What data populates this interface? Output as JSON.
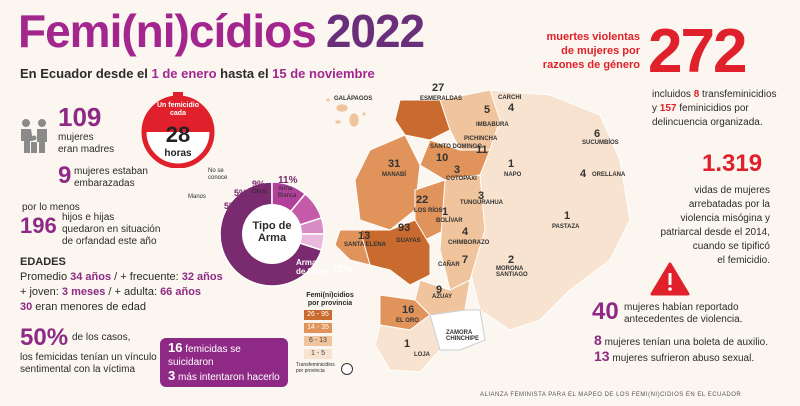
{
  "header": {
    "title_main": "Femi(ni)cídios",
    "title_year": "2022",
    "subtitle_prefix": "En Ecuador desde el ",
    "subtitle_start": "1 de enero",
    "subtitle_mid": " hasta el ",
    "subtitle_end": "15 de noviembre"
  },
  "mothers": {
    "count": "109",
    "label_line1": "mujeres",
    "label_line2": "eran madres"
  },
  "pregnant": {
    "count": "9",
    "label_line1": "mujeres estaban",
    "label_line2": "embarazadas"
  },
  "timer": {
    "line1": "Un femicidio",
    "line2": "cada",
    "value": "28",
    "unit": "horas"
  },
  "orphans": {
    "prefix": "por lo menos",
    "count": "196",
    "text_line1": "hijos e hijas",
    "text_line2": "quedaron en situación",
    "text_line3": "de orfandad este año"
  },
  "weapons": {
    "center_line1": "Tipo de",
    "center_line2": "Arma",
    "slices": [
      {
        "label": "Arma de fuego",
        "value": 70,
        "color": "#7a2a6e"
      },
      {
        "label": "Arma Blanca",
        "value": 11,
        "color": "#b0409a"
      },
      {
        "label": "Otros",
        "value": 9,
        "color": "#c45aa8"
      },
      {
        "label": "No se conoce",
        "value": 5,
        "color": "#d98cc4"
      },
      {
        "label": "Manos",
        "value": 5,
        "color": "#eab8dc"
      }
    ],
    "pct_fuego": "70%",
    "pct_blanca": "11%",
    "pct_otros": "9%",
    "pct_noconoce": "5%",
    "pct_manos": "5%",
    "lbl_fuego_1": "Arma",
    "lbl_fuego_2": "de fuego",
    "lbl_blanca_1": "Arma",
    "lbl_blanca_2": "Blanca",
    "lbl_otros": "Otros",
    "lbl_noconoce_1": "No se",
    "lbl_noconoce_2": "conoce",
    "lbl_manos": "Manos"
  },
  "ages": {
    "heading": "EDADES",
    "line1_a": "Promedio ",
    "line1_b": "34 años",
    "line1_c": " / + frecuente: ",
    "line1_d": "32 años",
    "line2_a": "+ joven: ",
    "line2_b": "3 meses",
    "line2_c": " / + adulta: ",
    "line2_d": "66 años",
    "line3_a": "30",
    "line3_b": " eran menores de edad"
  },
  "relationship": {
    "pct": "50%",
    "line1": "de los casos,",
    "line2": "los femicidas tenían un vínculo",
    "line3": "sentimental con la víctima"
  },
  "suicide": {
    "n1": "16",
    "t1": "femicidas se suicidaron",
    "n2": "3",
    "t2": "más intentaron hacerlo"
  },
  "legend": {
    "title_1": "Femi(ni)cidios",
    "title_2": "por provincia",
    "ranges": [
      "26 - 95",
      "14 - 35",
      "6 - 13",
      "1 - 5"
    ],
    "trans_label_1": "Transfeminicidios",
    "trans_label_2": "por provincia"
  },
  "violent_deaths": {
    "line1": "muertes violentas",
    "line2": "de mujeres por",
    "line3": "razones de género",
    "total": "272",
    "incl_a": "incluidos ",
    "incl_b": "8",
    "incl_c": " transfeminicidios",
    "incl_d": "y ",
    "incl_e": "157",
    "incl_f": " feminicidios por",
    "incl_g": "delincuencia organizada."
  },
  "since2014": {
    "count": "1.319",
    "line1": "vidas de mujeres",
    "line2": "arrebatadas por la",
    "line3": "violencia misógina y",
    "line4": "patriarcal desde el 2014,",
    "line5": "cuando se tipificó",
    "line6": "el femicidio."
  },
  "warnings": {
    "n1": "40",
    "t1a": "mujeres habían reportado",
    "t1b": "antecedentes de violencia.",
    "n2": "8",
    "t2": "mujeres tenían una boleta de auxilio.",
    "n3": "13",
    "t3": "mujeres sufrieron abuso sexual."
  },
  "provinces": [
    {
      "name": "GALÁPAGOS",
      "count": ""
    },
    {
      "name": "ESMERALDAS",
      "count": "27"
    },
    {
      "name": "CARCHI",
      "count": "4"
    },
    {
      "name": "IMBABURA",
      "count": "5"
    },
    {
      "name": "SUCUMBÍOS",
      "count": "6"
    },
    {
      "name": "PICHINCHA",
      "count": "11"
    },
    {
      "name": "SANTO DOMINGO",
      "count": "10"
    },
    {
      "name": "MANABÍ",
      "count": "31"
    },
    {
      "name": "COTOPAXI",
      "count": "3"
    },
    {
      "name": "NAPO",
      "count": "1"
    },
    {
      "name": "ORELLANA",
      "count": "4"
    },
    {
      "name": "LOS RÍOS",
      "count": "22"
    },
    {
      "name": "TUNGURAHUA",
      "count": "3"
    },
    {
      "name": "BOLÍVAR",
      "count": "1"
    },
    {
      "name": "PASTAZA",
      "count": "1"
    },
    {
      "name": "SANTA ELENA",
      "count": "13"
    },
    {
      "name": "GUAYAS",
      "count": "93"
    },
    {
      "name": "CHIMBORAZO",
      "count": "4"
    },
    {
      "name": "CAÑAR",
      "count": "7"
    },
    {
      "name": "MORONA SANTIAGO",
      "count": "2"
    },
    {
      "name": "AZUAY",
      "count": "9"
    },
    {
      "name": "EL ORO",
      "count": "16"
    },
    {
      "name": "ZAMORA CHINCHIPE",
      "count": ""
    },
    {
      "name": "LOJA",
      "count": "1"
    }
  ],
  "footer": "ALIANZA FEMINISTA PARA EL MAPEO DE LOS FEMI(NI)CIDIOS EN EL ECUADOR",
  "colors": {
    "purple": "#8e2a86",
    "red": "#e0202a",
    "map_dark": "#c96b2e",
    "map_mid": "#e0935a",
    "map_light": "#f0c49c",
    "map_lightest": "#f7e3cf"
  }
}
